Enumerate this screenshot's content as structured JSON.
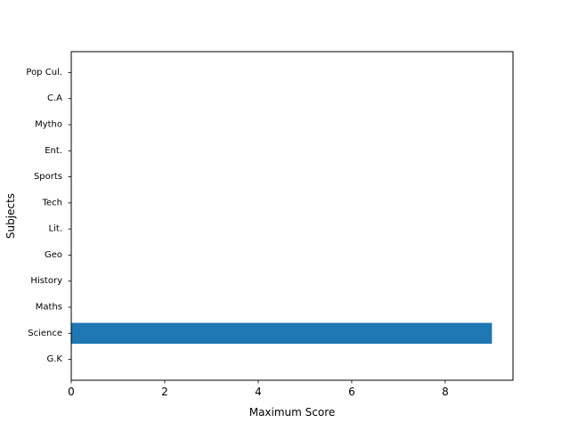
{
  "chart_data": {
    "type": "bar",
    "orientation": "horizontal",
    "categories": [
      "G.K",
      "Science",
      "Maths",
      "History",
      "Geo",
      "Lit.",
      "Tech",
      "Sports",
      "Ent.",
      "Mytho",
      "C.A",
      "Pop Cul."
    ],
    "values": [
      0,
      9,
      0,
      0,
      0,
      0,
      0,
      0,
      0,
      0,
      0,
      0
    ],
    "title": "",
    "xlabel": "Maximum Score",
    "ylabel": "Subjects",
    "xlim": [
      0,
      9.45
    ],
    "xticks": [
      0,
      2,
      4,
      6,
      8
    ],
    "grid": false,
    "bar_color": "#1f77b4"
  }
}
